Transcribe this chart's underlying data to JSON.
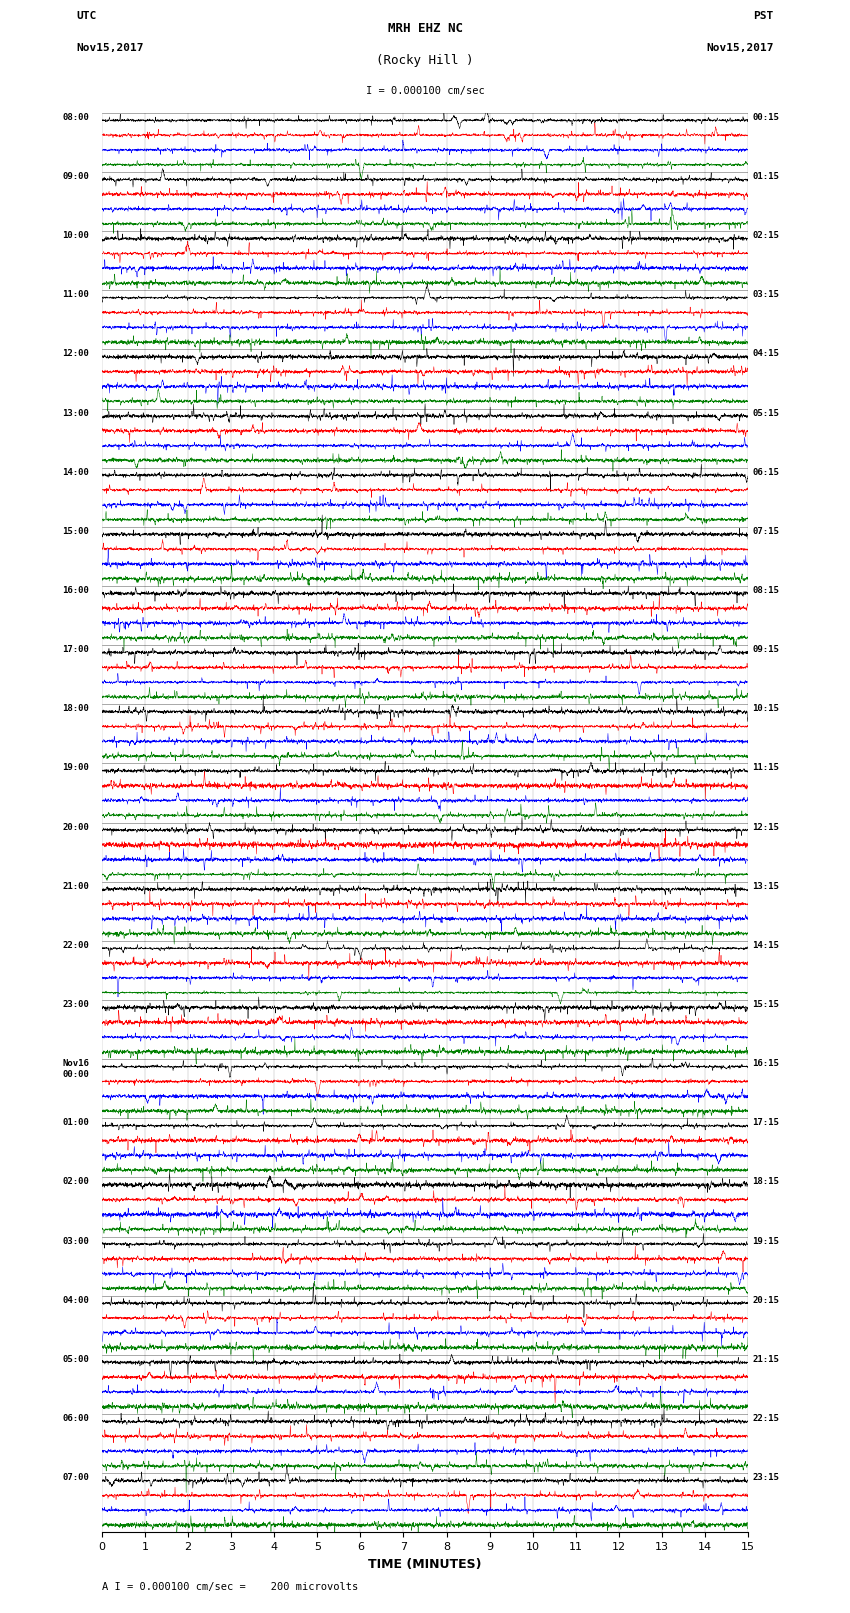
{
  "title_line1": "MRH EHZ NC",
  "title_line2": "(Rocky Hill )",
  "scale_label": "I = 0.000100 cm/sec",
  "bottom_label": "A I = 0.000100 cm/sec =    200 microvolts",
  "xlabel": "TIME (MINUTES)",
  "utc_label": "UTC\nNov15,2017",
  "pst_label": "PST\nNov15,2017",
  "left_times_utc": [
    "08:00",
    "09:00",
    "10:00",
    "11:00",
    "12:00",
    "13:00",
    "14:00",
    "15:00",
    "16:00",
    "17:00",
    "18:00",
    "19:00",
    "20:00",
    "21:00",
    "22:00",
    "23:00",
    "Nov16\n00:00",
    "01:00",
    "02:00",
    "03:00",
    "04:00",
    "05:00",
    "06:00",
    "07:00"
  ],
  "right_times_pst": [
    "00:15",
    "01:15",
    "02:15",
    "03:15",
    "04:15",
    "05:15",
    "06:15",
    "07:15",
    "08:15",
    "09:15",
    "10:15",
    "11:15",
    "12:15",
    "13:15",
    "14:15",
    "15:15",
    "16:15",
    "17:15",
    "18:15",
    "19:15",
    "20:15",
    "21:15",
    "22:15",
    "23:15"
  ],
  "num_rows": 24,
  "traces_per_row": 4,
  "colors": [
    "black",
    "red",
    "blue",
    "green"
  ],
  "xlim": [
    0,
    15
  ],
  "bg_color": "white",
  "line_width": 0.35,
  "seed": 42
}
